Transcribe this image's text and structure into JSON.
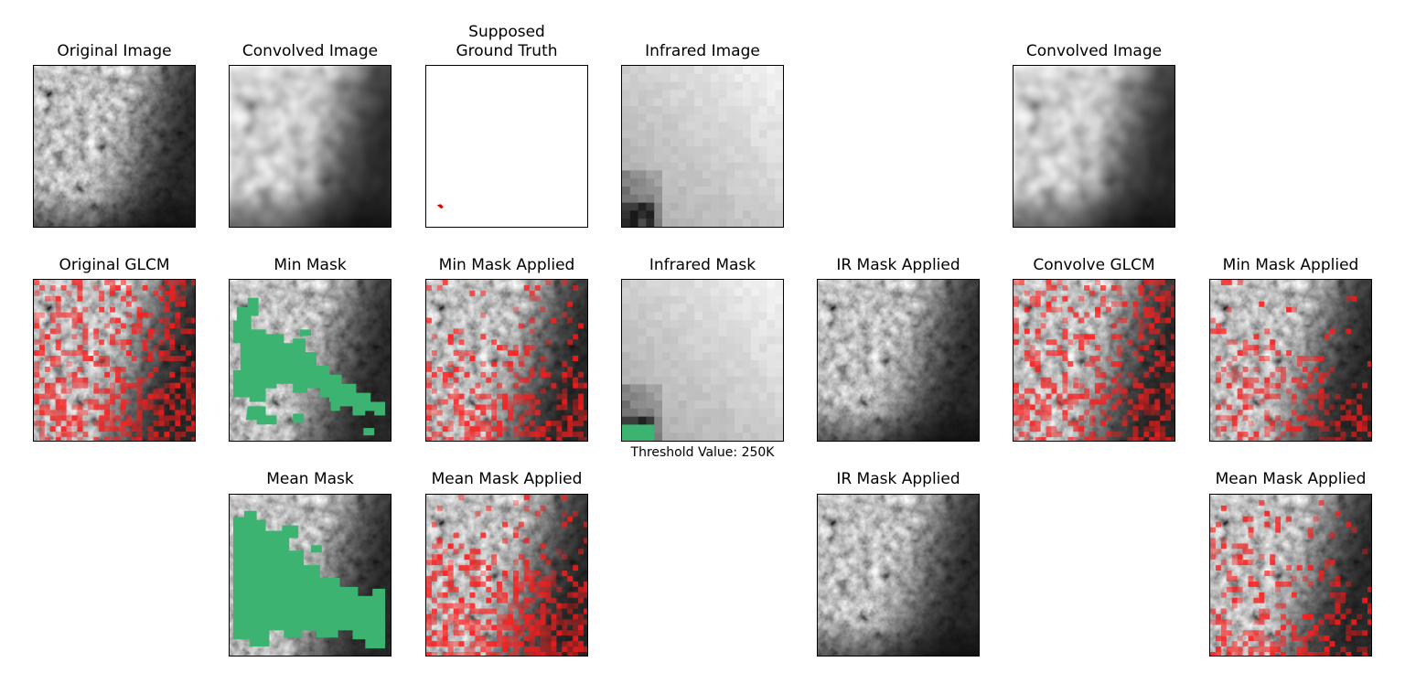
{
  "panels": {
    "original_image": "Original Image",
    "convolved_image": "Convolved Image",
    "supposed_ground_truth": "Supposed Ground Truth",
    "infrared_image": "Infrared Image",
    "convolved_image_2": "Convolved Image",
    "original_glcm": "Original GLCM",
    "min_mask": "Min Mask",
    "min_mask_applied": "Min Mask Applied",
    "infrared_mask": "Infrared Mask",
    "ir_mask_applied": "IR Mask Applied",
    "convolve_glcm": "Convolve GLCM",
    "min_mask_applied_2": "Min Mask Applied",
    "mean_mask": "Mean Mask",
    "mean_mask_applied": "Mean Mask Applied",
    "ir_mask_applied_2": "IR Mask Applied",
    "mean_mask_applied_2": "Mean Mask Applied"
  },
  "infrared_mask_caption": "Threshold Value: 250K",
  "colors": {
    "mask_green": "#3cb371",
    "overlay_red": "#ff1a1a",
    "ground_truth_red": "#e00000"
  }
}
